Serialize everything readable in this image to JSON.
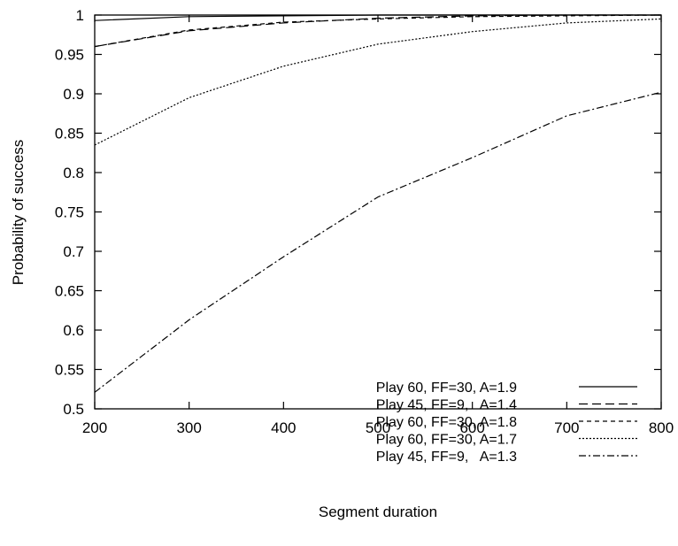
{
  "chart_data": {
    "type": "line",
    "title": "",
    "xlabel": "Segment duration",
    "ylabel": "Probability of success",
    "xlim": [
      200,
      800
    ],
    "ylim": [
      0.5,
      1.0
    ],
    "x_ticks": [
      200,
      300,
      400,
      500,
      600,
      700,
      800
    ],
    "y_ticks": [
      0.5,
      0.55,
      0.6,
      0.65,
      0.7,
      0.75,
      0.8,
      0.85,
      0.9,
      0.95,
      1.0
    ],
    "x_tick_labels": [
      "200",
      "300",
      "400",
      "500",
      "600",
      "700",
      "800"
    ],
    "y_tick_labels": [
      "0.5",
      "0.55",
      "0.6",
      "0.65",
      "0.7",
      "0.75",
      "0.8",
      "0.85",
      "0.9",
      "0.95",
      "1"
    ],
    "grid": false,
    "legend_position": "bottom-right",
    "x": [
      200,
      300,
      400,
      500,
      600,
      700,
      800
    ],
    "series": [
      {
        "name": "Play 60, FF=30, A=1.9",
        "dash": "solid",
        "values": [
          0.993,
          0.998,
          0.999,
          1.0,
          1.0,
          1.0,
          1.0
        ]
      },
      {
        "name": "Play 45, FF=9,   A=1.4",
        "dash": "long",
        "values": [
          0.96,
          0.98,
          0.99,
          0.996,
          0.999,
          1.0,
          1.0
        ]
      },
      {
        "name": "Play 60, FF=30, A=1.8",
        "dash": "medium",
        "values": [
          0.96,
          0.981,
          0.991,
          0.995,
          0.998,
          0.999,
          1.0
        ]
      },
      {
        "name": "Play 60, FF=30, A=1.7",
        "dash": "dotted",
        "values": [
          0.835,
          0.895,
          0.935,
          0.963,
          0.979,
          0.99,
          0.995
        ]
      },
      {
        "name": "Play 45, FF=9,   A=1.3",
        "dash": "dashdot",
        "values": [
          0.521,
          0.613,
          0.693,
          0.769,
          0.819,
          0.872,
          0.902
        ]
      }
    ]
  }
}
